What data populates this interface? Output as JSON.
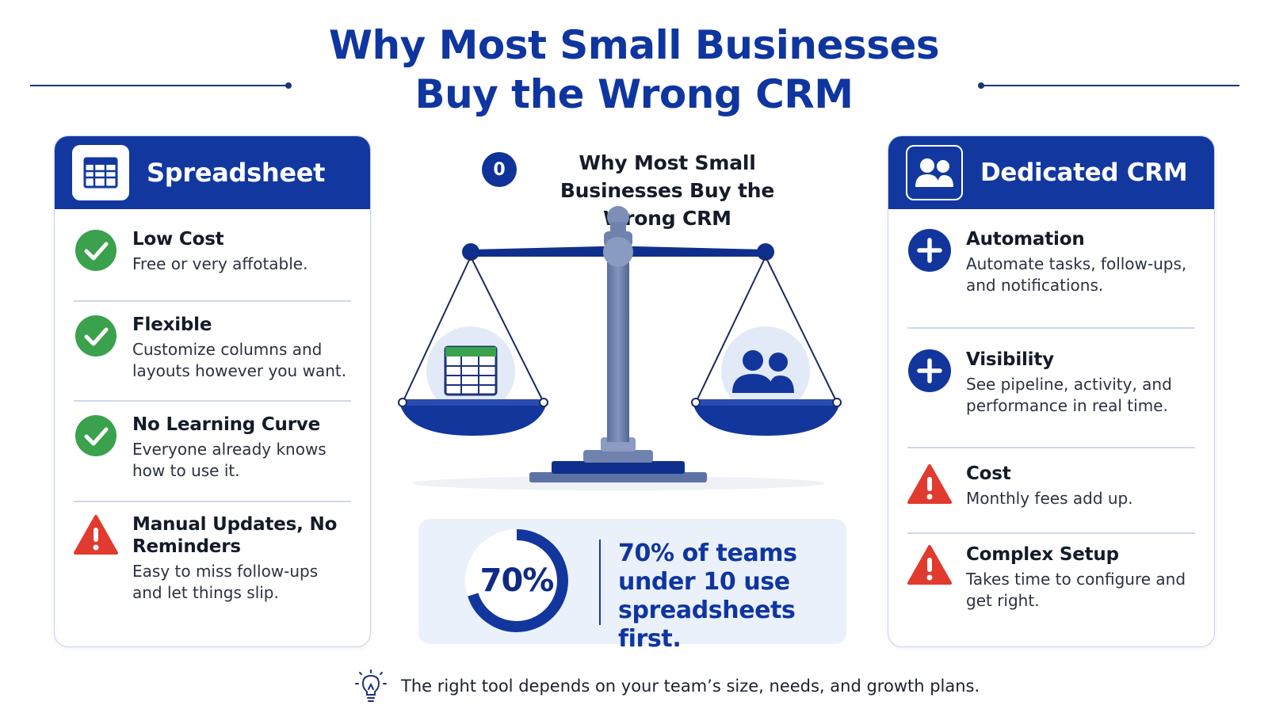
{
  "title": "Why Most Small Businesses Buy the Wrong CRM",
  "colors": {
    "brand_blue": "#1238a0",
    "title_blue": "#0f35a0",
    "check_green": "#3aa14c",
    "warning_red": "#e13a2e",
    "light_panel": "#ebf1fb"
  },
  "left_card": {
    "title": "Spreadsheet",
    "header_icon": "spreadsheet-icon",
    "items": [
      {
        "icon": "check-icon",
        "title": "Low Cost",
        "desc": "Free or very affotable."
      },
      {
        "icon": "check-icon",
        "title": "Flexible",
        "desc": "Customize columns and layouts however you want."
      },
      {
        "icon": "check-icon",
        "title": "No Learning Curve",
        "desc": "Everyone already knows how to use it."
      },
      {
        "icon": "warning-icon",
        "title": "Manual Updates, No Reminders",
        "desc": "Easy to miss follow-ups and let things slip."
      }
    ]
  },
  "center": {
    "badge": "0",
    "subtitle": "Why Most Small Businesses Buy the Wrong CRM",
    "scale_icon": "balance-scale-icon",
    "left_pan_icon": "spreadsheet-icon",
    "right_pan_icon": "users-icon",
    "stat": {
      "percent_label": "70%",
      "percent_value": 70,
      "text": "70% of teams under 10 use spreadsheets first."
    }
  },
  "right_card": {
    "title": "Dedicated CRM",
    "header_icon": "users-icon",
    "items": [
      {
        "icon": "plus-icon",
        "title": "Automation",
        "desc": "Automate tasks, follow-ups, and notifications."
      },
      {
        "icon": "plus-icon",
        "title": "Visibility",
        "desc": "See pipeline, activity, and performance in real time."
      },
      {
        "icon": "warning-icon",
        "title": "Cost",
        "desc": "Monthly fees add up."
      },
      {
        "icon": "warning-icon",
        "title": "Complex Setup",
        "desc": "Takes time to configure and get right."
      }
    ]
  },
  "footer": {
    "icon": "lightbulb-icon",
    "text": "The right tool depends on your team’s size, needs, and growth plans."
  }
}
